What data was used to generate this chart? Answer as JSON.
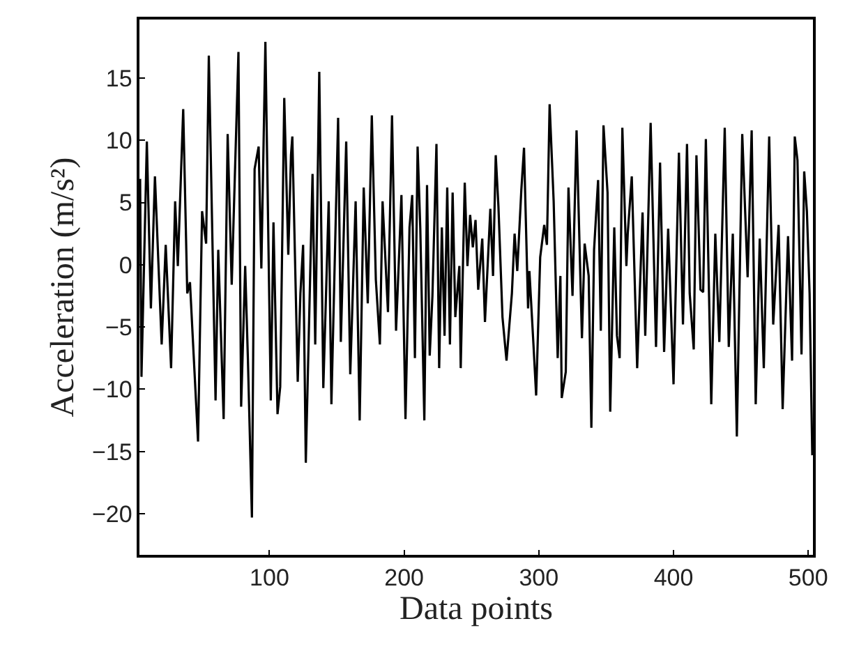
{
  "chart_data": {
    "type": "line",
    "xlabel": "Data points",
    "ylabel": "Acceleration (m/s²)",
    "xlim": [
      3.5,
      503.5
    ],
    "ylim": [
      -23.3,
      19.7
    ],
    "xticks": [
      100,
      200,
      300,
      400,
      500
    ],
    "yticks": [
      -20,
      -15,
      -10,
      -5,
      0,
      5,
      10,
      15
    ],
    "marker": "none",
    "line_style": "solid",
    "series": [
      {
        "color": "#000000",
        "x": [
          4,
          5,
          9,
          12,
          15,
          20,
          23,
          27,
          30,
          32,
          36,
          39,
          41,
          47,
          50,
          53,
          55,
          60,
          62,
          66,
          69,
          72,
          77,
          79,
          82,
          84,
          87,
          89,
          92,
          94,
          97,
          101,
          103,
          106,
          108,
          111,
          114,
          116,
          117,
          121,
          123,
          125,
          127,
          132,
          134,
          137,
          140,
          144,
          146,
          151,
          153,
          157,
          160,
          164,
          167,
          170,
          173,
          176,
          179,
          182,
          184,
          188,
          191,
          194,
          196,
          198,
          201,
          204,
          206,
          208,
          210,
          212,
          215,
          217,
          219,
          221,
          224,
          226,
          228,
          230,
          232,
          234,
          236,
          238,
          241,
          242,
          245,
          247,
          249,
          251,
          253,
          255,
          258,
          260,
          264,
          266,
          268,
          270,
          273,
          276,
          280,
          282,
          284,
          287,
          289,
          292,
          293,
          296,
          298,
          301,
          304,
          306,
          308,
          311,
          314,
          316,
          317,
          320,
          322,
          325,
          328,
          332,
          334,
          337,
          339,
          341,
          344,
          346,
          348,
          351,
          353,
          356,
          358,
          360,
          362,
          365,
          366,
          369,
          373,
          377,
          379,
          383,
          387,
          390,
          393,
          396,
          400,
          404,
          407,
          410,
          412,
          415,
          417,
          420,
          422,
          424,
          428,
          431,
          434,
          438,
          441,
          444,
          447,
          451,
          455,
          458,
          461,
          464,
          467,
          471,
          474,
          478,
          481,
          485,
          488,
          490,
          492,
          495,
          497,
          499,
          501,
          503
        ],
        "values": [
          6.9,
          -9.0,
          9.9,
          -3.5,
          7.1,
          -6.4,
          1.6,
          -8.3,
          5.1,
          -0.1,
          12.5,
          -2.3,
          -1.4,
          -14.2,
          4.3,
          1.7,
          16.8,
          -10.9,
          1.2,
          -12.4,
          10.5,
          -1.6,
          17.1,
          -11.4,
          -0.1,
          -7.5,
          -20.3,
          7.7,
          9.5,
          -0.3,
          17.9,
          -10.9,
          3.4,
          -12.0,
          -9.8,
          13.4,
          0.8,
          8.8,
          10.3,
          -9.4,
          -2.3,
          1.6,
          -15.9,
          7.3,
          -6.4,
          15.5,
          -9.9,
          5.1,
          -11.2,
          11.8,
          -6.2,
          9.9,
          -8.8,
          5.1,
          -12.5,
          6.2,
          -3.1,
          12.0,
          -1.2,
          -6.4,
          5.1,
          -3.8,
          12.0,
          -5.3,
          0.1,
          5.6,
          -12.4,
          3.0,
          5.6,
          -7.5,
          9.5,
          2.9,
          -12.5,
          6.4,
          -7.3,
          -2.5,
          9.7,
          -8.3,
          3.0,
          -5.7,
          6.2,
          -6.4,
          5.8,
          -4.2,
          -0.1,
          -8.3,
          6.6,
          -0.1,
          4.0,
          1.4,
          3.6,
          -2.0,
          2.1,
          -4.6,
          4.5,
          -0.9,
          8.8,
          4.7,
          -4.2,
          -7.7,
          -2.3,
          2.5,
          -0.5,
          6.0,
          9.4,
          -3.5,
          -0.5,
          -6.4,
          -10.5,
          0.6,
          3.2,
          1.6,
          12.9,
          5.1,
          -7.5,
          -0.9,
          -10.7,
          -8.6,
          6.2,
          -2.5,
          10.8,
          -5.9,
          1.7,
          -0.9,
          -13.1,
          1.2,
          6.8,
          -5.3,
          11.2,
          5.8,
          -11.8,
          3.0,
          -5.7,
          -7.5,
          11.0,
          -0.1,
          2.5,
          7.1,
          -8.3,
          4.2,
          -5.7,
          11.4,
          -6.6,
          8.2,
          -7.0,
          2.9,
          -9.6,
          9.0,
          -4.8,
          9.7,
          -2.3,
          -6.8,
          8.8,
          -2.0,
          -2.2,
          10.1,
          -11.2,
          2.5,
          -6.2,
          11.0,
          -6.6,
          2.5,
          -13.8,
          10.5,
          -1.0,
          10.8,
          -11.2,
          2.1,
          -8.3,
          10.3,
          -4.8,
          3.2,
          -11.6,
          2.3,
          -7.7,
          10.3,
          8.4,
          -7.2,
          7.5,
          4.3,
          -2.3,
          -15.3
        ]
      }
    ]
  }
}
